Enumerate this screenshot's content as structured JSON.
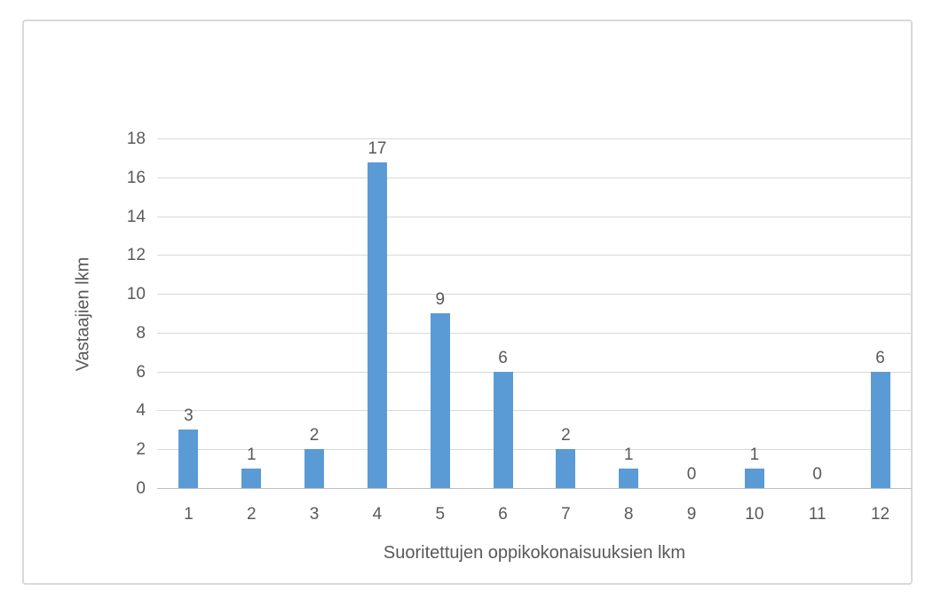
{
  "chart_data": {
    "type": "bar",
    "title": "",
    "categories": [
      "1",
      "2",
      "3",
      "4",
      "5",
      "6",
      "7",
      "8",
      "9",
      "10",
      "11",
      "12"
    ],
    "values": [
      3,
      1,
      2,
      17,
      9,
      6,
      2,
      1,
      0,
      1,
      0,
      6
    ],
    "xlabel": "Suoritettujen oppikokonaisuuksien lkm",
    "ylabel": "Vastaajien lkm",
    "ylim": [
      0,
      18
    ],
    "yticks": [
      0,
      2,
      4,
      6,
      8,
      10,
      12,
      14,
      16,
      18
    ],
    "grid": true,
    "legend": false,
    "data_labels": true,
    "bar_color": "#5b9bd5",
    "gridline_color": "#d9d9d9",
    "axis_line_color": "#bfbfbf",
    "text_color": "#595959",
    "frame_border_color": "#d9d9d9"
  }
}
